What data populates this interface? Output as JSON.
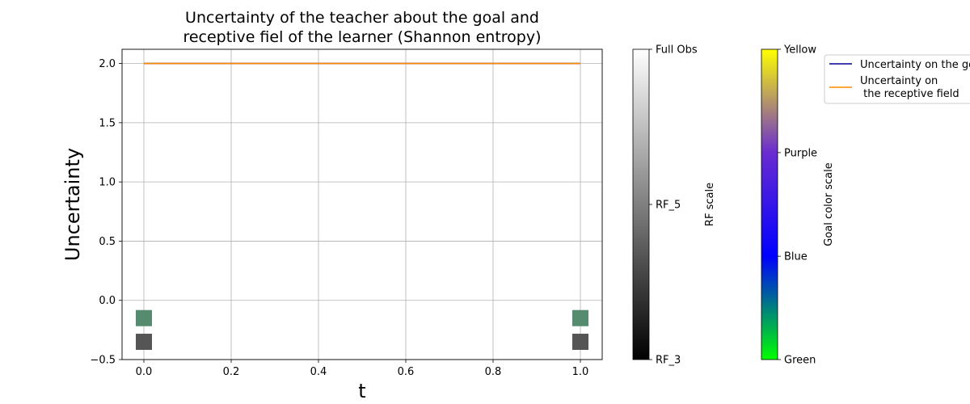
{
  "chart_data": {
    "type": "line",
    "title_line1": "Uncertainty of the teacher about the goal and",
    "title_line2": "receptive fiel of the learner (Shannon entropy)",
    "xlabel": "t",
    "ylabel": "Uncertainty",
    "xlim": [
      -0.05,
      1.05
    ],
    "ylim": [
      -0.5,
      2.12
    ],
    "x_ticks": [
      0.0,
      0.2,
      0.4,
      0.6,
      0.8,
      1.0
    ],
    "x_tick_labels": [
      "0.0",
      "0.2",
      "0.4",
      "0.6",
      "0.8",
      "1.0"
    ],
    "y_ticks": [
      -0.5,
      0.0,
      0.5,
      1.0,
      1.5,
      2.0
    ],
    "y_tick_labels": [
      "−0.5",
      "0.0",
      "0.5",
      "1.0",
      "1.5",
      "2.0"
    ],
    "grid": true,
    "series": [
      {
        "name": "Uncertainty on the goal",
        "x": [
          0,
          1
        ],
        "y": [
          2.0,
          2.0
        ],
        "color": "#00008b"
      },
      {
        "name": "Uncertainty on\n the receptive field",
        "x": [
          0,
          1
        ],
        "y": [
          2.0,
          2.0
        ],
        "color": "#ff8c00"
      }
    ],
    "markers": [
      {
        "x": 0,
        "y": -0.15,
        "color": "#558b6e"
      },
      {
        "x": 1,
        "y": -0.15,
        "color": "#558b6e"
      },
      {
        "x": 0,
        "y": -0.35,
        "color": "#555555"
      },
      {
        "x": 1,
        "y": -0.35,
        "color": "#555555"
      }
    ],
    "legend": {
      "placement": "top-right"
    },
    "colorbars": [
      {
        "label": "RF scale",
        "ticks": [
          "RF_3",
          "RF_5",
          "Full Obs"
        ],
        "tick_positions": [
          0,
          0.5,
          1
        ],
        "gradient": [
          "#000000",
          "#ffffff"
        ]
      },
      {
        "label": "Goal color scale",
        "ticks": [
          "Green",
          "Blue",
          "Purple",
          "Yellow"
        ],
        "tick_positions": [
          0,
          0.333,
          0.667,
          1
        ],
        "gradient": [
          "#00ff00",
          "#0000ff",
          "#6a2bd1",
          "#ffff00"
        ]
      }
    ]
  }
}
